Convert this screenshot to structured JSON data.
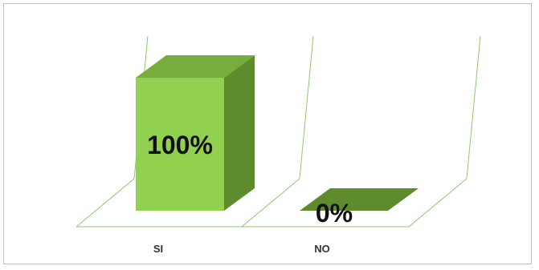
{
  "chart_data": {
    "type": "bar",
    "title": "",
    "xlabel": "",
    "ylabel": "",
    "categories": [
      "SI",
      "NO"
    ],
    "values": [
      100,
      0
    ],
    "data_labels": [
      "100%",
      "0%"
    ],
    "ylim": [
      0,
      100
    ],
    "grid": false,
    "legend": "none",
    "style": "3d-column"
  },
  "colors": {
    "front": "#92d050",
    "top": "#77ad3c",
    "side": "#5e8c2d",
    "wall_lines": "#8dc96a",
    "frame": "#bfbfbf"
  }
}
